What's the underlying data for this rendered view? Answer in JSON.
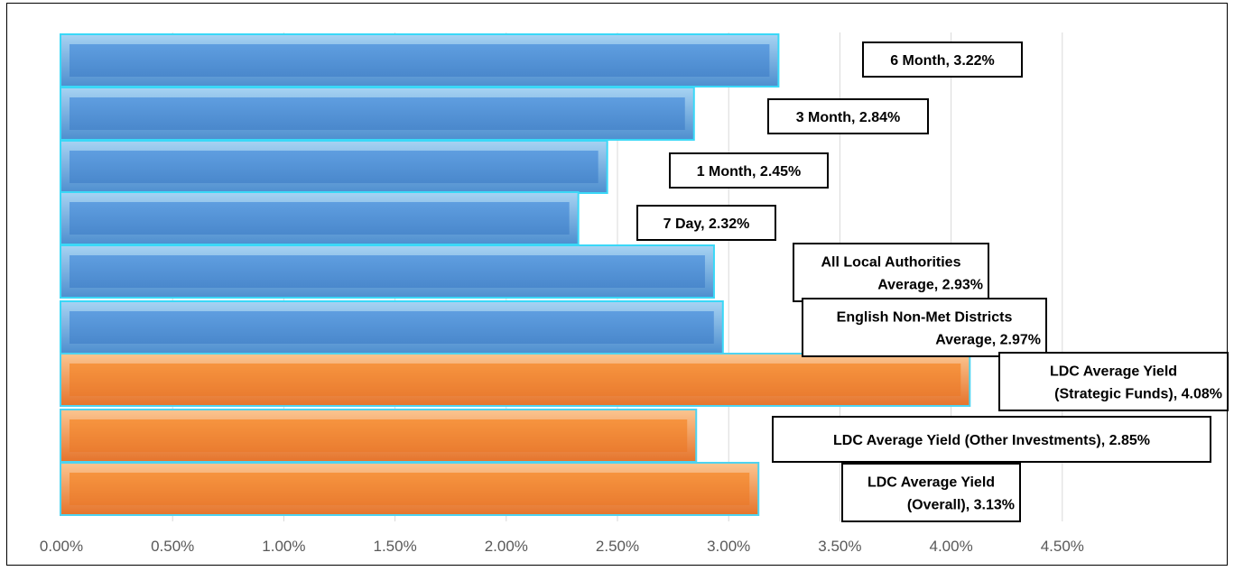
{
  "chart_data": {
    "type": "bar",
    "orientation": "horizontal",
    "xlim": [
      0,
      0.045
    ],
    "x_ticks": [
      0,
      0.005,
      0.01,
      0.015,
      0.02,
      0.025,
      0.03,
      0.035,
      0.04,
      0.045
    ],
    "x_tick_labels": [
      "0.00%",
      "0.50%",
      "1.00%",
      "1.50%",
      "2.00%",
      "2.50%",
      "3.00%",
      "3.50%",
      "4.00%",
      "4.50%"
    ],
    "grid": true,
    "colors": {
      "blue": "#5b9bd5",
      "orange": "#ed7d31"
    },
    "bars": [
      {
        "category": "6 Month",
        "value": 3.22,
        "color": "blue",
        "label": [
          "6 Month, 3.22%"
        ]
      },
      {
        "category": "3 Month",
        "value": 2.84,
        "color": "blue",
        "label": [
          "3 Month, 2.84%"
        ]
      },
      {
        "category": "1 Month",
        "value": 2.45,
        "color": "blue",
        "label": [
          "1 Month, 2.45%"
        ]
      },
      {
        "category": "7 Day",
        "value": 2.32,
        "color": "blue",
        "label": [
          "7 Day, 2.32%"
        ]
      },
      {
        "category": "All Local Authorities Average",
        "value": 2.93,
        "color": "blue",
        "label": [
          "All Local Authorities",
          "Average, 2.93%"
        ]
      },
      {
        "category": "English Non-Met Districts Average",
        "value": 2.97,
        "color": "blue",
        "label": [
          "English Non-Met Districts",
          "Average, 2.97%"
        ]
      },
      {
        "category": "LDC Average Yield (Strategic Funds)",
        "value": 4.08,
        "color": "orange",
        "label": [
          "LDC Average Yield",
          "(Strategic Funds), 4.08%"
        ]
      },
      {
        "category": "LDC Average Yield (Other Investments)",
        "value": 2.85,
        "color": "orange",
        "label": [
          "LDC Average Yield (Other Investments), 2.85%"
        ]
      },
      {
        "category": "LDC Average Yield (Overall)",
        "value": 3.13,
        "color": "orange",
        "label": [
          "LDC Average Yield",
          "(Overall), 3.13%"
        ]
      }
    ]
  }
}
